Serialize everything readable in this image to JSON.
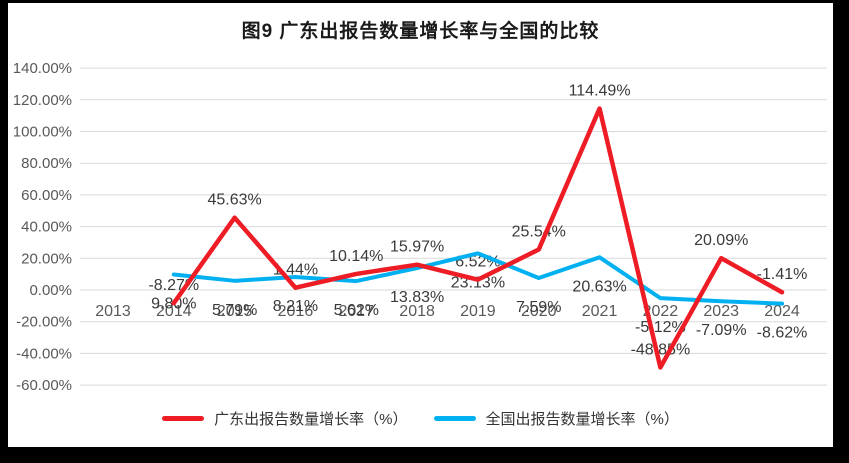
{
  "title": "图9  广东出报告数量增长率与全国的比较",
  "chart_data": {
    "type": "line",
    "categories": [
      "2013",
      "2014",
      "2015",
      "2016",
      "2017",
      "2018",
      "2019",
      "2020",
      "2021",
      "2022",
      "2023",
      "2024"
    ],
    "series": [
      {
        "name": "广东出报告数量增长率（%）",
        "color": "#ee1c25",
        "stroke_width": 4.5,
        "label_position": "above",
        "values": [
          null,
          -8.27,
          45.63,
          1.44,
          10.14,
          15.97,
          6.52,
          25.54,
          114.49,
          -48.85,
          20.09,
          -1.41
        ]
      },
      {
        "name": "全国出报告数量增长率（%）",
        "color": "#00b0f0",
        "stroke_width": 4,
        "label_position": "below",
        "values": [
          null,
          9.8,
          5.79,
          8.21,
          5.62,
          13.83,
          23.13,
          7.59,
          20.63,
          -5.12,
          -7.09,
          -8.62
        ]
      }
    ],
    "ylim": [
      -60,
      140
    ],
    "ytick_step": 20,
    "ytick_labels": [
      "140.00%",
      "120.00%",
      "100.00%",
      "80.00%",
      "60.00%",
      "40.00%",
      "20.00%",
      "0.00%",
      "-20.00%",
      "-40.00%",
      "-60.00%"
    ],
    "label_format": "0.00%",
    "grid": "horizontal",
    "legend_position": "bottom"
  },
  "colors": {
    "grid": "#d9d9d9",
    "axis_text": "#595959",
    "data_label": "#3a3a3a",
    "background": "#ffffff",
    "frame": "#000000"
  }
}
